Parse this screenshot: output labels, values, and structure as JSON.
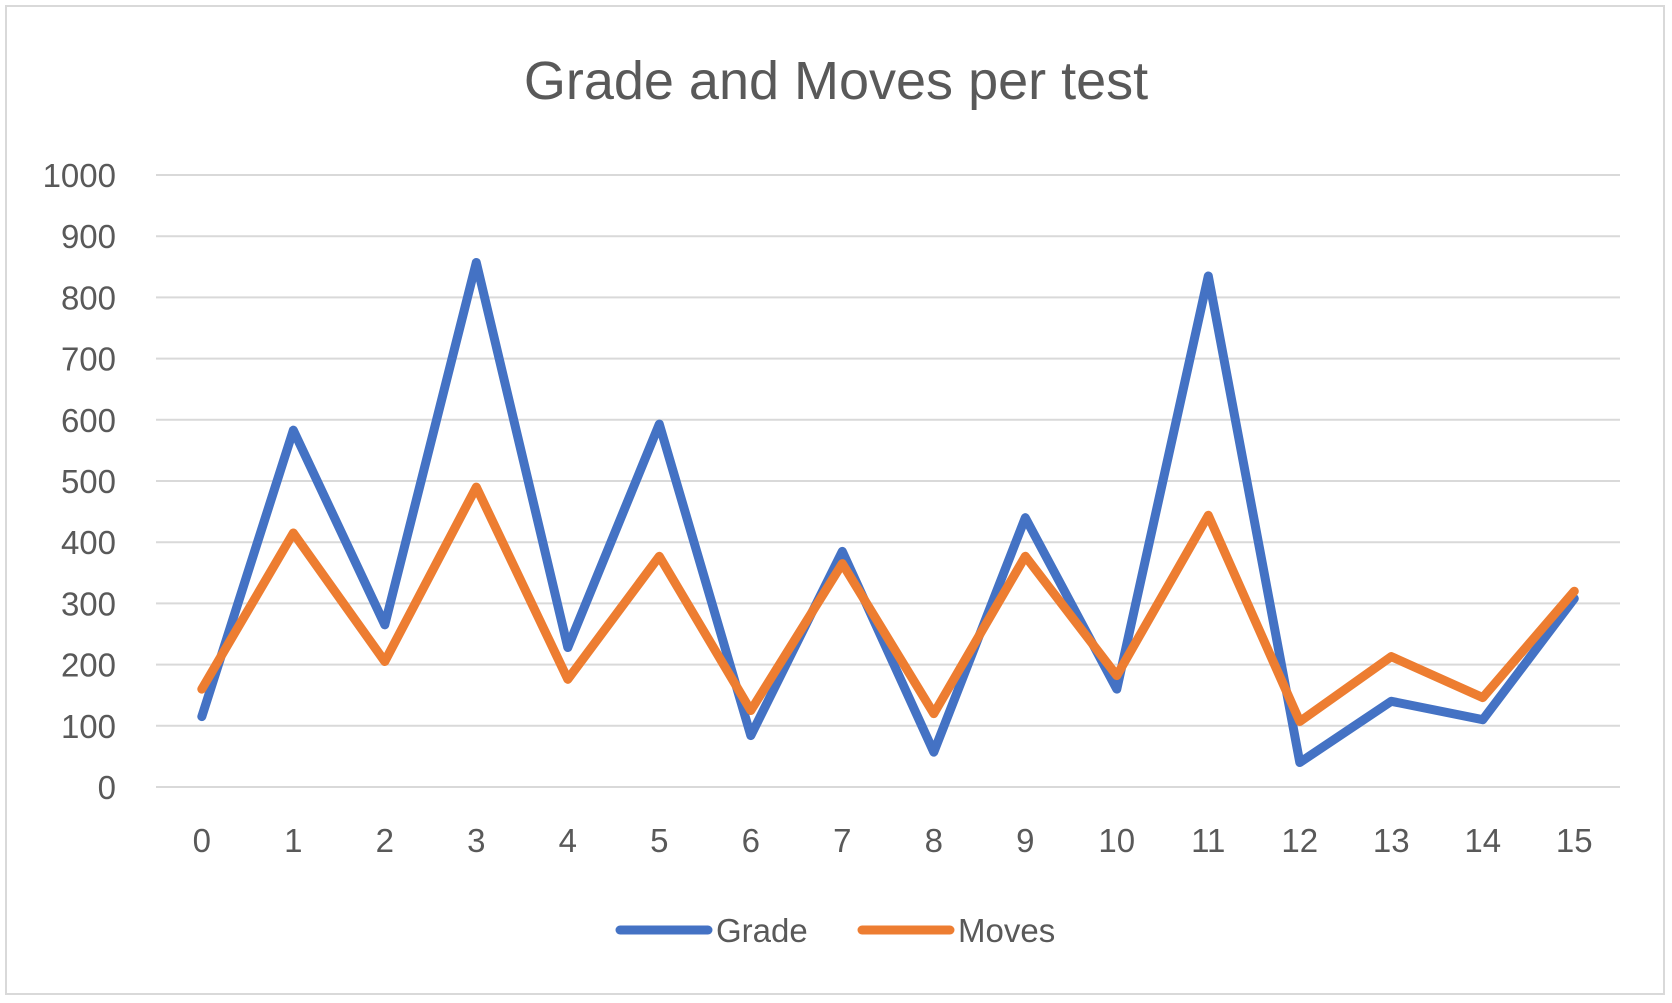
{
  "chart_data": {
    "type": "line",
    "title": "Grade and Moves per test",
    "xlabel": "",
    "ylabel": "",
    "categories": [
      "0",
      "1",
      "2",
      "3",
      "4",
      "5",
      "6",
      "7",
      "8",
      "9",
      "10",
      "11",
      "12",
      "13",
      "14",
      "15"
    ],
    "y_ticks": [
      "0",
      "100",
      "200",
      "300",
      "400",
      "500",
      "600",
      "700",
      "800",
      "900",
      "1000"
    ],
    "ylim": [
      0,
      1000
    ],
    "grid": true,
    "legend_position": "bottom",
    "series": [
      {
        "name": "Grade",
        "color": "#4472c4",
        "values": [
          115,
          583,
          265,
          857,
          228,
          593,
          84,
          385,
          57,
          440,
          160,
          835,
          40,
          140,
          110,
          308
        ]
      },
      {
        "name": "Moves",
        "color": "#ed7d31",
        "values": [
          160,
          415,
          205,
          490,
          176,
          377,
          125,
          365,
          120,
          377,
          182,
          444,
          107,
          213,
          146,
          320
        ]
      }
    ]
  }
}
